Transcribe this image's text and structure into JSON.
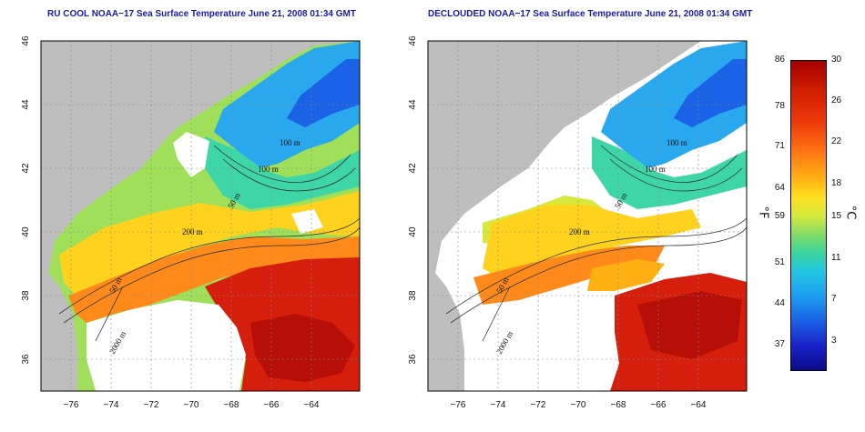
{
  "left_map": {
    "title": "RU COOL NOAA−17 Sea Surface Temperature June 21, 2008 01:34 GMT",
    "x_ticks": [
      "−76",
      "−74",
      "−72",
      "−70",
      "−68",
      "−66",
      "−64"
    ],
    "y_ticks": [
      "46",
      "44",
      "42",
      "40",
      "38",
      "36"
    ],
    "contour_labels": [
      "100 m",
      "100 m",
      "50 m",
      "200 m",
      "50 m",
      "2000 m"
    ]
  },
  "right_map": {
    "title": "DECLOUDED NOAA−17 Sea Surface Temperature June 21, 2008 01:34 GMT",
    "x_ticks": [
      "−76",
      "−74",
      "−72",
      "−70",
      "−68",
      "−66",
      "−64"
    ],
    "y_ticks": [
      "46",
      "44",
      "42",
      "40",
      "38",
      "36"
    ],
    "contour_labels": [
      "100 m",
      "100 m",
      "50 m",
      "200 m",
      "50 m",
      "2000 m"
    ]
  },
  "colorbar": {
    "fahrenheit_ticks": [
      "86",
      "78",
      "71",
      "64",
      "59",
      "51",
      "44",
      "37"
    ],
    "celsius_ticks": [
      "30",
      "26",
      "22",
      "18",
      "15",
      "11",
      "7",
      "3"
    ],
    "fahrenheit_unit": "°F",
    "celsius_unit": "°C"
  },
  "colors": {
    "title": "#1a1aa6",
    "land": "#bebebe",
    "cloud": "#ffffff",
    "warm": "#d51f0c",
    "cold": "#1a62e6"
  }
}
